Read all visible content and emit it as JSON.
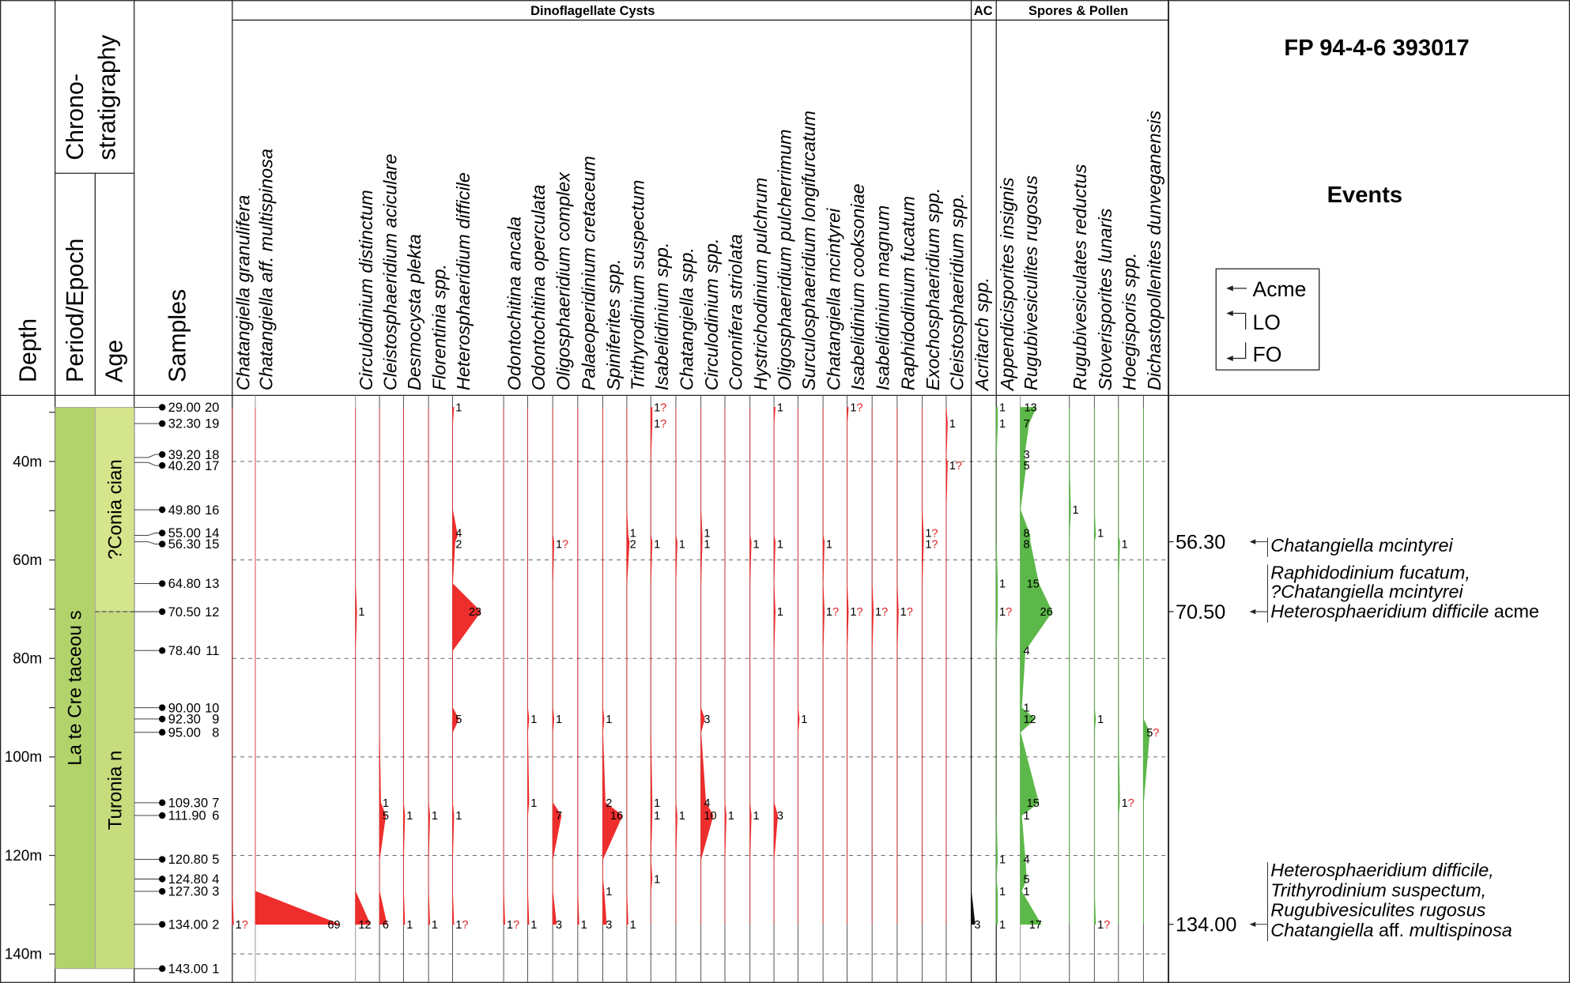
{
  "title": "FP 94-4-6 393017",
  "headers": {
    "depth": "Depth",
    "chrono_1": "Chrono-",
    "chrono_2": "stratigraphy",
    "period": "Period/Epoch",
    "age": "Age",
    "samples": "Samples",
    "events": "Events",
    "group_dino": "Dinoflagellate Cysts",
    "group_ac": "AC",
    "group_spores": "Spores & Pollen"
  },
  "legend": {
    "acme": "Acme",
    "lo": "LO",
    "fo": "FO"
  },
  "colors": {
    "dino": "#ee2d2d",
    "spores": "#5cb848",
    "acritarch": "#111111",
    "period": "#b2d36c",
    "coniacian": "#d5e58b",
    "turonian": "#c6dc7d"
  },
  "chart_data": {
    "type": "range-chart",
    "depth_axis": {
      "unit": "m",
      "range": [
        29,
        143
      ],
      "tick_labels": [
        "40m",
        "60m",
        "80m",
        "100m",
        "120m",
        "140m"
      ],
      "grid": true
    },
    "period": "La te Cre taceou s",
    "ages": [
      {
        "label": "?Conia cian",
        "top": 29.0,
        "base": 70.5
      },
      {
        "label": "Turonia n",
        "top": 70.5,
        "base": 143.0
      }
    ],
    "samples": [
      {
        "depth": "29.00",
        "no": "20"
      },
      {
        "depth": "32.30",
        "no": "19"
      },
      {
        "depth": "39.20",
        "no": "18"
      },
      {
        "depth": "40.20",
        "no": "17"
      },
      {
        "depth": "49.80",
        "no": "16"
      },
      {
        "depth": "55.00",
        "no": "14"
      },
      {
        "depth": "56.30",
        "no": "15"
      },
      {
        "depth": "64.80",
        "no": "13"
      },
      {
        "depth": "70.50",
        "no": "12"
      },
      {
        "depth": "78.40",
        "no": "11"
      },
      {
        "depth": "90.00",
        "no": "10"
      },
      {
        "depth": "92.30",
        "no": "9"
      },
      {
        "depth": "95.00",
        "no": "8"
      },
      {
        "depth": "109.30",
        "no": "7"
      },
      {
        "depth": "111.90",
        "no": "6"
      },
      {
        "depth": "120.80",
        "no": "5"
      },
      {
        "depth": "124.80",
        "no": "4"
      },
      {
        "depth": "127.30",
        "no": "3"
      },
      {
        "depth": "134.00",
        "no": "2"
      },
      {
        "depth": "143.00",
        "no": "1"
      }
    ],
    "species": [
      {
        "group": "dino",
        "name": "Chatangiella granulifera",
        "occ": [
          [
            "134.00",
            "1?"
          ]
        ]
      },
      {
        "group": "dino",
        "name": "Chatangiella aff. multispinosa",
        "occ": [
          [
            "134.00",
            "69"
          ]
        ]
      },
      {
        "group": "dino",
        "name": "Circulodinium distinctum",
        "occ": [
          [
            "70.50",
            "1"
          ],
          [
            "134.00",
            "12"
          ]
        ]
      },
      {
        "group": "dino",
        "name": "Cleistosphaeridium aciculare",
        "occ": [
          [
            "109.30",
            "1"
          ],
          [
            "111.90",
            "5"
          ],
          [
            "134.00",
            "6"
          ]
        ]
      },
      {
        "group": "dino",
        "name": "Desmocysta plekta",
        "occ": [
          [
            "111.90",
            "1"
          ],
          [
            "134.00",
            "1"
          ]
        ]
      },
      {
        "group": "dino",
        "name": "Florentinia spp.",
        "occ": [
          [
            "111.90",
            "1"
          ],
          [
            "134.00",
            "1"
          ]
        ]
      },
      {
        "group": "dino",
        "name": "Heterosphaeridium difficile",
        "occ": [
          [
            "29.00",
            "1"
          ],
          [
            "55.00",
            "4"
          ],
          [
            "56.30",
            "2"
          ],
          [
            "70.50",
            "23"
          ],
          [
            "92.30",
            "5"
          ],
          [
            "111.90",
            "1"
          ],
          [
            "134.00",
            "1?"
          ]
        ]
      },
      {
        "group": "dino",
        "name": "Odontochitina ancala",
        "occ": [
          [
            "134.00",
            "1?"
          ]
        ]
      },
      {
        "group": "dino",
        "name": "Odontochitina operculata",
        "occ": [
          [
            "92.30",
            "1"
          ],
          [
            "109.30",
            "1"
          ],
          [
            "134.00",
            "1"
          ]
        ]
      },
      {
        "group": "dino",
        "name": "Oligosphaeridium complex",
        "occ": [
          [
            "56.30",
            "1?"
          ],
          [
            "92.30",
            "1"
          ],
          [
            "111.90",
            "7"
          ],
          [
            "134.00",
            "3"
          ]
        ]
      },
      {
        "group": "dino",
        "name": "Palaeoperidinium cretaceum",
        "occ": [
          [
            "134.00",
            "1"
          ]
        ]
      },
      {
        "group": "dino",
        "name": "Spiniferites spp.",
        "occ": [
          [
            "92.30",
            "1"
          ],
          [
            "109.30",
            "2"
          ],
          [
            "111.90",
            "16"
          ],
          [
            "127.30",
            "1"
          ],
          [
            "134.00",
            "3"
          ]
        ]
      },
      {
        "group": "dino",
        "name": "Trithyrodinium suspectum",
        "occ": [
          [
            "55.00",
            "1"
          ],
          [
            "56.30",
            "2"
          ],
          [
            "134.00",
            "1"
          ]
        ]
      },
      {
        "group": "dino",
        "name": "Isabelidinium spp.",
        "occ": [
          [
            "29.00",
            "1?"
          ],
          [
            "32.30",
            "1?"
          ],
          [
            "56.30",
            "1"
          ],
          [
            "109.30",
            "1"
          ],
          [
            "111.90",
            "1"
          ],
          [
            "124.80",
            "1"
          ]
        ]
      },
      {
        "group": "dino",
        "name": "Chatangiella spp.",
        "occ": [
          [
            "56.30",
            "1"
          ],
          [
            "111.90",
            "1"
          ]
        ]
      },
      {
        "group": "dino",
        "name": "Circulodinium spp.",
        "occ": [
          [
            "55.00",
            "1"
          ],
          [
            "56.30",
            "1"
          ],
          [
            "92.30",
            "3"
          ],
          [
            "109.30",
            "4"
          ],
          [
            "111.90",
            "10"
          ]
        ]
      },
      {
        "group": "dino",
        "name": "Coronifera striolata",
        "occ": [
          [
            "111.90",
            "1"
          ]
        ]
      },
      {
        "group": "dino",
        "name": "Hystrichodinium pulchrum",
        "occ": [
          [
            "56.30",
            "1"
          ],
          [
            "111.90",
            "1"
          ]
        ]
      },
      {
        "group": "dino",
        "name": "Oligosphaeridium pulcherrimum",
        "occ": [
          [
            "29.00",
            "1"
          ],
          [
            "56.30",
            "1"
          ],
          [
            "70.50",
            "1"
          ],
          [
            "111.90",
            "3"
          ]
        ]
      },
      {
        "group": "dino",
        "name": "Surculosphaeridium longifurcatum",
        "occ": [
          [
            "92.30",
            "1"
          ]
        ]
      },
      {
        "group": "dino",
        "name": "Chatangiella mcintyrei",
        "occ": [
          [
            "56.30",
            "1"
          ],
          [
            "70.50",
            "1?"
          ]
        ]
      },
      {
        "group": "dino",
        "name": "Isabelidinium cooksoniae",
        "occ": [
          [
            "29.00",
            "1?"
          ],
          [
            "70.50",
            "1?"
          ]
        ]
      },
      {
        "group": "dino",
        "name": "Isabelidinium magnum",
        "occ": [
          [
            "70.50",
            "1?"
          ]
        ]
      },
      {
        "group": "dino",
        "name": "Raphidodinium fucatum",
        "occ": [
          [
            "70.50",
            "1?"
          ]
        ]
      },
      {
        "group": "dino",
        "name": "Exochosphaeridium spp.",
        "occ": [
          [
            "55.00",
            "1?"
          ],
          [
            "56.30",
            "1?"
          ]
        ]
      },
      {
        "group": "dino",
        "name": "Cleistosphaeridium spp.",
        "occ": [
          [
            "32.30",
            "1"
          ],
          [
            "40.20",
            "1?"
          ]
        ]
      },
      {
        "group": "acritarch",
        "name": "Acritarch spp.",
        "occ": [
          [
            "134.00",
            "3"
          ]
        ]
      },
      {
        "group": "spores",
        "name": "Appendicisporites insignis",
        "occ": [
          [
            "29.00",
            "1"
          ],
          [
            "32.30",
            "1"
          ],
          [
            "64.80",
            "1"
          ],
          [
            "70.50",
            "1?"
          ],
          [
            "120.80",
            "1"
          ],
          [
            "127.30",
            "1"
          ],
          [
            "134.00",
            "1"
          ]
        ]
      },
      {
        "group": "spores",
        "name": "Rugubivesiculites rugosus",
        "occ": [
          [
            "29.00",
            "13"
          ],
          [
            "32.30",
            "7"
          ],
          [
            "39.20",
            "3"
          ],
          [
            "40.20",
            "5"
          ],
          [
            "55.00",
            "8"
          ],
          [
            "56.30",
            "8"
          ],
          [
            "64.80",
            "15"
          ],
          [
            "70.50",
            "26"
          ],
          [
            "78.40",
            "4"
          ],
          [
            "90.00",
            "1"
          ],
          [
            "92.30",
            "12"
          ],
          [
            "109.30",
            "15"
          ],
          [
            "111.90",
            "1"
          ],
          [
            "120.80",
            "4"
          ],
          [
            "124.80",
            "5"
          ],
          [
            "127.30",
            "1"
          ],
          [
            "134.00",
            "17"
          ]
        ]
      },
      {
        "group": "spores",
        "name": "Rugubivesiculates reductus",
        "occ": [
          [
            "49.80",
            "1"
          ]
        ]
      },
      {
        "group": "spores",
        "name": "Stoverisporites lunaris",
        "occ": [
          [
            "55.00",
            "1"
          ],
          [
            "92.30",
            "1"
          ],
          [
            "134.00",
            "1?"
          ]
        ]
      },
      {
        "group": "spores",
        "name": "Hoegisporis spp.",
        "occ": [
          [
            "56.30",
            "1"
          ],
          [
            "109.30",
            "1?"
          ]
        ]
      },
      {
        "group": "spores",
        "name": "Dichastopollenites dunveganensis",
        "occ": [
          [
            "95.00",
            "5?"
          ]
        ]
      }
    ],
    "events": [
      {
        "depth": "56.30",
        "type": "LO",
        "lines": [
          [
            {
              "t": "Chatangiella mcintyrei",
              "i": true
            }
          ]
        ]
      },
      {
        "depth": "70.50",
        "type": "LO",
        "lines": [
          [
            {
              "t": "Raphidodinium fucatum,",
              "i": true
            }
          ],
          [
            {
              "t": "?Chatangiella mcintyrei",
              "i": true
            }
          ],
          [
            {
              "t": "Heterosphaeridium difficile",
              "i": true
            },
            {
              "t": " acme",
              "i": false
            }
          ]
        ]
      },
      {
        "depth": "134.00",
        "type": "FO",
        "lines": [
          [
            {
              "t": "Heterosphaeridium difficile,",
              "i": true
            }
          ],
          [
            {
              "t": "Trithyrodinium suspectum,",
              "i": true
            }
          ],
          [
            {
              "t": "Rugubivesiculites rugosus",
              "i": true
            }
          ],
          [
            {
              "t": "Chatangiella",
              "i": true
            },
            {
              "t": "  aff. ",
              "i": false
            },
            {
              "t": "multispinosa",
              "i": true
            }
          ]
        ]
      }
    ]
  }
}
